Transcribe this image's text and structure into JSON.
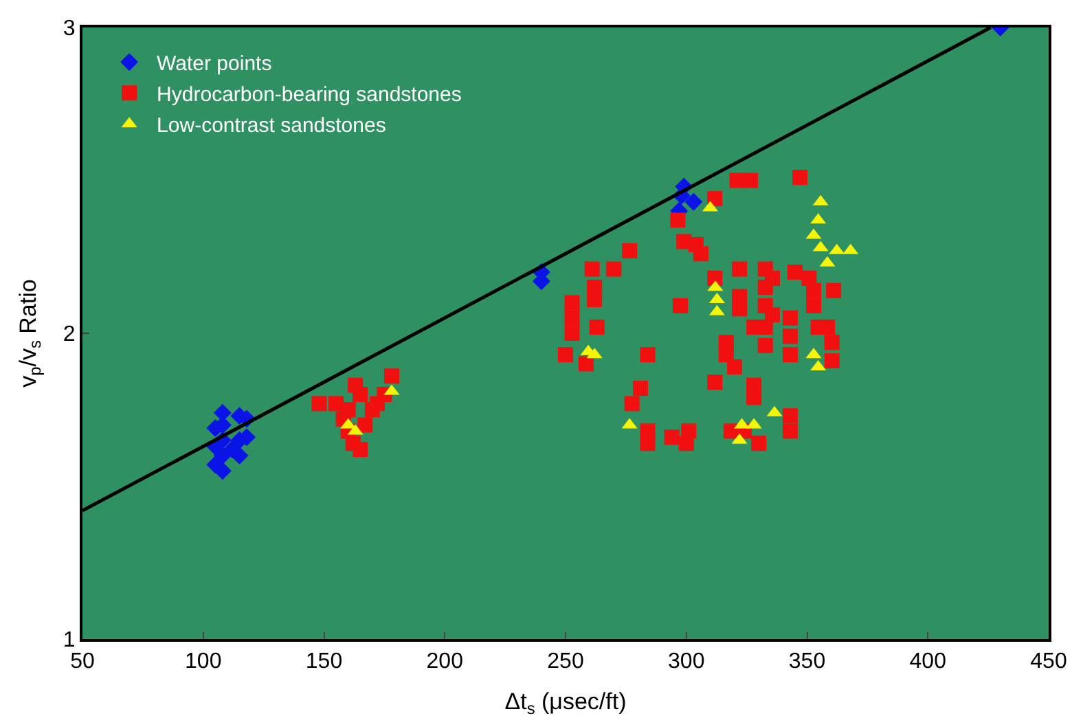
{
  "chart_data": {
    "type": "scatter",
    "xlabel": "Δt$_{s}$ (μsec/ft)",
    "ylabel": "v$_{p}$/v$_{s}$ Ratio",
    "xlim": [
      50,
      450
    ],
    "ylim": [
      1,
      3
    ],
    "xticks": [
      50,
      100,
      150,
      200,
      250,
      300,
      350,
      400,
      450
    ],
    "yticks": [
      1,
      2,
      3
    ],
    "grid": false,
    "legend": "top left",
    "series": [
      {
        "name": "Water points",
        "color": "#0a14e6",
        "marker": "diamond",
        "x": [
          105,
          105,
          105,
          108,
          108,
          108,
          108,
          108,
          112,
          115,
          115,
          115,
          118,
          118,
          240,
          240,
          297,
          298,
          299,
          303,
          430
        ],
        "values": [
          1.57,
          1.63,
          1.69,
          1.55,
          1.6,
          1.65,
          1.7,
          1.74,
          1.62,
          1.6,
          1.65,
          1.73,
          1.66,
          1.72,
          2.17,
          2.2,
          2.4,
          2.45,
          2.48,
          2.43,
          3.0
        ]
      },
      {
        "name": "Hydrocarbon-bearing sandstones",
        "color": "#f01010",
        "marker": "square",
        "x": [
          148,
          155,
          158,
          160,
          162,
          165,
          165,
          170,
          172,
          175,
          178,
          160,
          167,
          163,
          321,
          326.5,
          347,
          296.5,
          299,
          304,
          306,
          276.5,
          261,
          270,
          252.7,
          252.7,
          252.7,
          262,
          262,
          263,
          250,
          258.5,
          297.5,
          284,
          281,
          277.5,
          284,
          284,
          294,
          301,
          300,
          311.8,
          311.8,
          316.5,
          316.5,
          320,
          322,
          322,
          322,
          328,
          328,
          328,
          332.7,
          332.7,
          332.7,
          332.7,
          332.7,
          335.6,
          335.6,
          343,
          343,
          343,
          345,
          350.8,
          352.7,
          352.7,
          361,
          354.6,
          358.4,
          360.3,
          360.3,
          324,
          330,
          318.5,
          343,
          343,
          311.8
        ],
        "values": [
          1.77,
          1.77,
          1.72,
          1.68,
          1.64,
          1.62,
          1.8,
          1.75,
          1.77,
          1.8,
          1.86,
          1.75,
          1.7,
          1.83,
          2.5,
          2.5,
          2.51,
          2.37,
          2.3,
          2.29,
          2.26,
          2.27,
          2.21,
          2.21,
          2.1,
          2.05,
          2.0,
          2.15,
          2.11,
          2.02,
          1.93,
          1.9,
          2.09,
          1.93,
          1.82,
          1.77,
          1.68,
          1.64,
          1.66,
          1.68,
          1.64,
          2.18,
          1.84,
          1.97,
          1.93,
          1.89,
          2.21,
          2.12,
          2.08,
          2.02,
          1.83,
          1.79,
          2.21,
          2.15,
          2.09,
          2.02,
          1.96,
          2.18,
          2.06,
          2.05,
          1.99,
          1.93,
          2.2,
          2.18,
          2.14,
          2.09,
          2.14,
          2.02,
          2.02,
          1.97,
          1.91,
          1.68,
          1.64,
          1.68,
          1.73,
          1.68,
          2.44
        ]
      },
      {
        "name": "Low-contrast sandstones",
        "color": "#f5f50a",
        "marker": "triangle",
        "x": [
          160,
          163,
          178,
          309.9,
          259.4,
          262,
          276.5,
          312,
          312.7,
          312.7,
          323,
          322,
          328,
          336.5,
          355.6,
          354.6,
          352.7,
          355.6,
          362.3,
          368,
          358.4,
          352.7,
          354.6
        ],
        "values": [
          1.7,
          1.68,
          1.81,
          2.41,
          1.94,
          1.93,
          1.7,
          2.15,
          2.11,
          2.07,
          1.7,
          1.65,
          1.7,
          1.74,
          2.43,
          2.37,
          2.32,
          2.28,
          2.27,
          2.27,
          2.23,
          1.93,
          1.89
        ]
      },
      {
        "type": "line",
        "color": "#000000",
        "marker": "none",
        "x": [
          50,
          426
        ],
        "values": [
          1.42,
          3.0
        ]
      }
    ]
  }
}
